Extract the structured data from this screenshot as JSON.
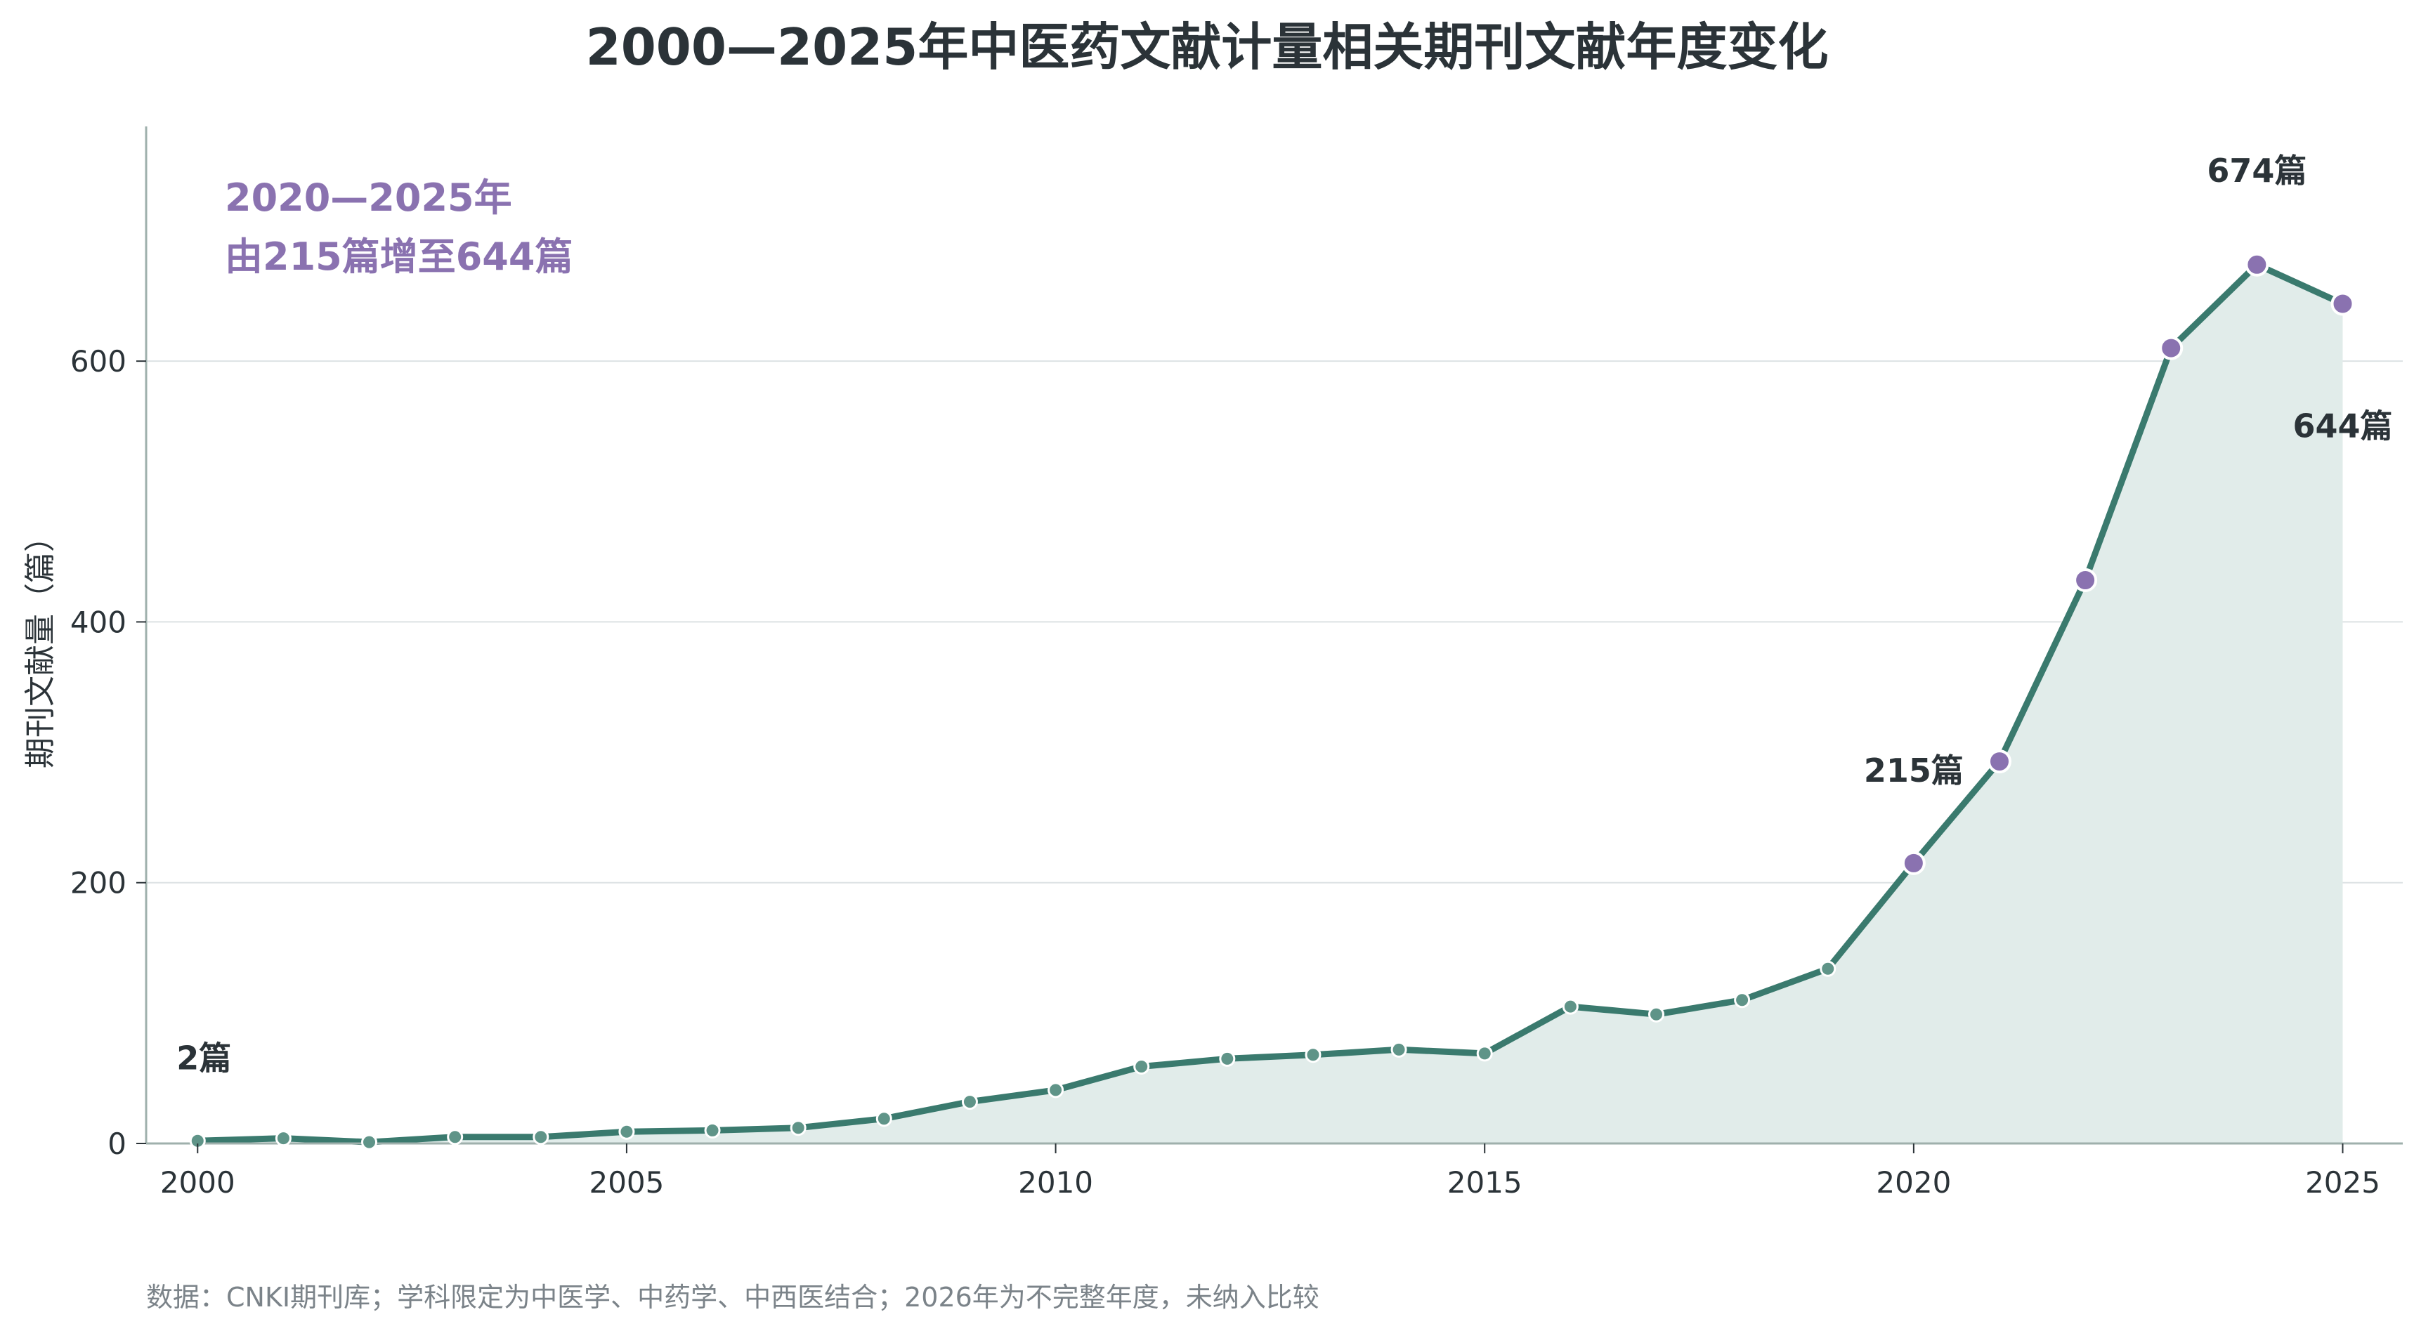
{
  "chart_data": {
    "type": "area",
    "title": "2000—2025年中医药文献计量相关期刊文献年度变化",
    "ylabel": "期刊文献量（篇）",
    "xlabel": "",
    "x": [
      2000,
      2001,
      2002,
      2003,
      2004,
      2005,
      2006,
      2007,
      2008,
      2009,
      2010,
      2011,
      2012,
      2013,
      2014,
      2015,
      2016,
      2017,
      2018,
      2019,
      2020,
      2021,
      2022,
      2023,
      2024,
      2025
    ],
    "series": [
      {
        "values": [
          2,
          4,
          1,
          5,
          5,
          9,
          10,
          12,
          19,
          32,
          41,
          59,
          65,
          68,
          72,
          69,
          105,
          99,
          110,
          134,
          215,
          293,
          432,
          610,
          674,
          644
        ],
        "highlight_from": 2020
      }
    ],
    "xlim": [
      1999.4,
      2025.7
    ],
    "ylim": [
      0,
      780
    ],
    "xticks": [
      "2000",
      "2005",
      "2010",
      "2015",
      "2020",
      "2025"
    ],
    "yticks": [
      "0",
      "200",
      "400",
      "600"
    ],
    "grid": "horizontal",
    "annotations": [
      {
        "x": 2000,
        "y": 2,
        "text": "2篇"
      },
      {
        "x": 2020,
        "y": 215,
        "text": "215篇"
      },
      {
        "x": 2024,
        "y": 674,
        "text": "674篇"
      },
      {
        "x": 2025,
        "y": 644,
        "text": "644篇"
      }
    ],
    "callout": [
      "2020—2025年",
      "由215篇增至644篇"
    ],
    "colors": {
      "line": "#3a7a6e",
      "fill": "#e1ecea",
      "highlight": "#8a72b0",
      "point": "#5f9488",
      "grid": "#dde2e4",
      "axis": "#9fb0ac"
    }
  },
  "source_note": "数据：CNKI期刊库；学科限定为中医学、中药学、中西医结合；2026年为不完整年度，未纳入比较"
}
